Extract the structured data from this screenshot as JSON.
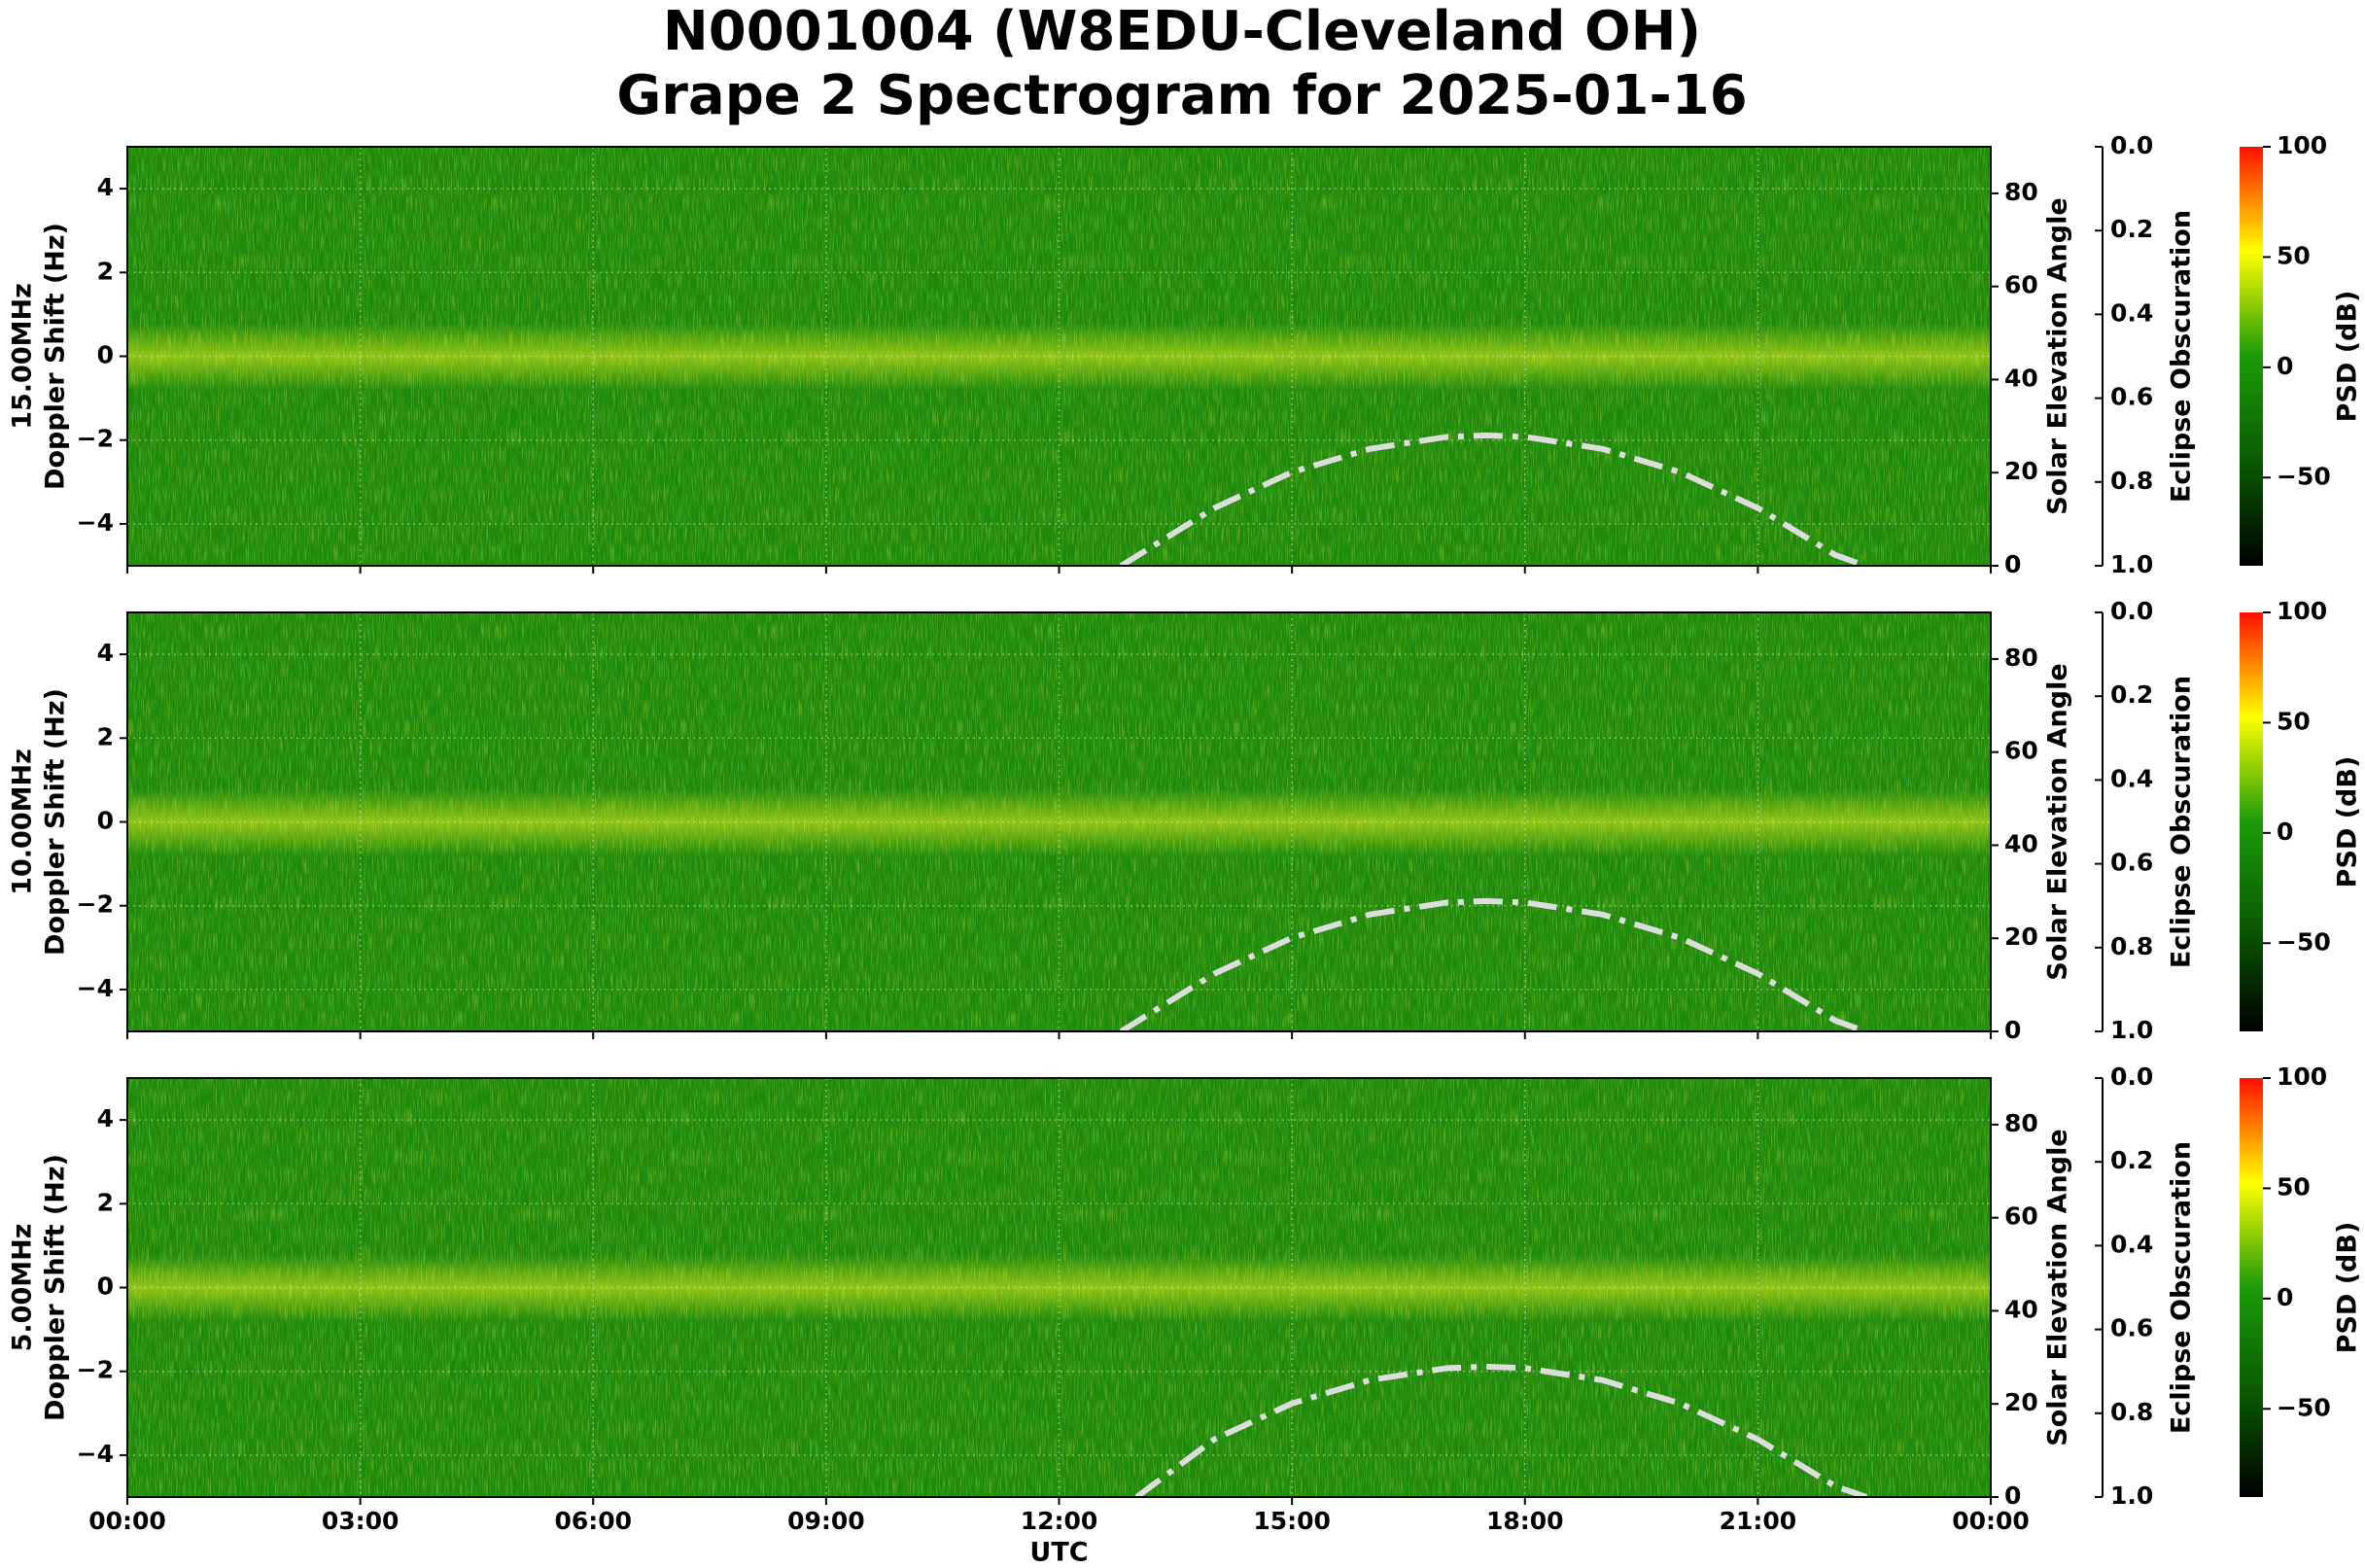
{
  "title": [
    "N0001004 (W8EDU-Cleveland OH)",
    "Grape 2 Spectrogram for 2025-01-16"
  ],
  "chart_data": [
    {
      "type": "spectrogram",
      "ylabel": [
        "15.00MHz",
        "Doppler Shift (Hz)"
      ],
      "ylim": [
        -5,
        5
      ],
      "yticks": [
        {
          "value": -4,
          "label": "−4"
        },
        {
          "value": -2,
          "label": "−2"
        },
        0,
        2,
        4
      ],
      "xlim": [
        0,
        24
      ],
      "xticks": [
        0,
        3,
        6,
        9,
        12,
        15,
        18,
        21,
        24
      ],
      "grid": true,
      "y2label": "Solar Elevation Angle",
      "y2lim": [
        0,
        90
      ],
      "y2ticks": [
        0,
        20,
        40,
        60,
        80
      ],
      "obscuration_label": "Eclipse Obscuration",
      "obscuration_lim": [
        1,
        0
      ],
      "obscuration_ticks": [
        {
          "value": 0,
          "label": "0.0"
        },
        {
          "value": 0.2,
          "label": "0.2"
        },
        {
          "value": 0.4,
          "label": "0.4"
        },
        {
          "value": 0.6,
          "label": "0.6"
        },
        {
          "value": 0.8,
          "label": "0.8"
        },
        {
          "value": 1,
          "label": "1.0"
        }
      ],
      "colorbar_label": "PSD (dB)",
      "clim": [
        -90,
        100
      ],
      "cticks": [
        {
          "value": -50,
          "label": "−50"
        },
        0,
        50,
        100
      ],
      "colormap": [
        "#000000",
        "#0a5a00",
        "#1c9a0a",
        "#ffff00",
        "#ff1000"
      ],
      "x": [
        12.8,
        14,
        15,
        16,
        17,
        17.5,
        18,
        19,
        20,
        21,
        22,
        22.3
      ],
      "series": [
        {
          "axis": "y2",
          "color": "#dddddd",
          "values": [
            0,
            12.4,
            20.1,
            25.1,
            27.7,
            28,
            27.7,
            25.1,
            20.1,
            12.4,
            2.3,
            0.5
          ]
        }
      ]
    },
    {
      "type": "spectrogram",
      "ylabel": [
        "10.00MHz",
        "Doppler Shift (Hz)"
      ],
      "ylim": [
        -5,
        5
      ],
      "yticks": [
        {
          "value": -4,
          "label": "−4"
        },
        {
          "value": -2,
          "label": "−2"
        },
        0,
        2,
        4
      ],
      "xlim": [
        0,
        24
      ],
      "xticks": [
        0,
        3,
        6,
        9,
        12,
        15,
        18,
        21,
        24
      ],
      "grid": true,
      "y2label": "Solar Elevation Angle",
      "y2lim": [
        0,
        90
      ],
      "y2ticks": [
        0,
        20,
        40,
        60,
        80
      ],
      "obscuration_label": "Eclipse Obscuration",
      "obscuration_lim": [
        1,
        0
      ],
      "obscuration_ticks": [
        {
          "value": 0,
          "label": "0.0"
        },
        {
          "value": 0.2,
          "label": "0.2"
        },
        {
          "value": 0.4,
          "label": "0.4"
        },
        {
          "value": 0.6,
          "label": "0.6"
        },
        {
          "value": 0.8,
          "label": "0.8"
        },
        {
          "value": 1,
          "label": "1.0"
        }
      ],
      "colorbar_label": "PSD (dB)",
      "clim": [
        -90,
        100
      ],
      "cticks": [
        {
          "value": -50,
          "label": "−50"
        },
        0,
        50,
        100
      ],
      "colormap": [
        "#000000",
        "#0a5a00",
        "#1c9a0a",
        "#ffff00",
        "#ff1000"
      ],
      "x": [
        12.8,
        14,
        15,
        16,
        17,
        17.5,
        18,
        19,
        20,
        21,
        22,
        22.3
      ],
      "series": [
        {
          "axis": "y2",
          "color": "#dddddd",
          "values": [
            0,
            12.4,
            20.1,
            25.1,
            27.7,
            28,
            27.7,
            25.1,
            20.1,
            12.4,
            2.3,
            0.5
          ]
        }
      ]
    },
    {
      "type": "spectrogram",
      "ylabel": [
        "5.00MHz",
        "Doppler Shift (Hz)"
      ],
      "ylim": [
        -5,
        5
      ],
      "yticks": [
        {
          "value": -4,
          "label": "−4"
        },
        {
          "value": -2,
          "label": "−2"
        },
        0,
        2,
        4
      ],
      "xlim": [
        0,
        24
      ],
      "xlabel": "UTC",
      "grid": true,
      "xticks": [
        {
          "value": 0,
          "label": "00:00"
        },
        {
          "value": 3,
          "label": "03:00"
        },
        {
          "value": 6,
          "label": "06:00"
        },
        {
          "value": 9,
          "label": "09:00"
        },
        {
          "value": 12,
          "label": "12:00"
        },
        {
          "value": 15,
          "label": "15:00"
        },
        {
          "value": 18,
          "label": "18:00"
        },
        {
          "value": 21,
          "label": "21:00"
        },
        {
          "value": 24,
          "label": "00:00"
        }
      ],
      "y2label": "Solar Elevation Angle",
      "y2lim": [
        0,
        90
      ],
      "y2ticks": [
        0,
        20,
        40,
        60,
        80
      ],
      "obscuration_label": "Eclipse Obscuration",
      "obscuration_lim": [
        1,
        0
      ],
      "obscuration_ticks": [
        {
          "value": 0,
          "label": "0.0"
        },
        {
          "value": 0.2,
          "label": "0.2"
        },
        {
          "value": 0.4,
          "label": "0.4"
        },
        {
          "value": 0.6,
          "label": "0.6"
        },
        {
          "value": 0.8,
          "label": "0.8"
        },
        {
          "value": 1,
          "label": "1.0"
        }
      ],
      "colorbar_label": "PSD (dB)",
      "clim": [
        -90,
        100
      ],
      "cticks": [
        {
          "value": -50,
          "label": "−50"
        },
        0,
        50,
        100
      ],
      "colormap": [
        "#000000",
        "#0a5a00",
        "#1c9a0a",
        "#ffff00",
        "#ff1000"
      ],
      "x": [
        13.0,
        14,
        15,
        16,
        17,
        17.5,
        18,
        19,
        20,
        21,
        22,
        22.4
      ],
      "series": [
        {
          "axis": "y2",
          "color": "#dddddd",
          "values": [
            0,
            12.4,
            20.1,
            25.1,
            27.7,
            28,
            27.7,
            25.1,
            20.1,
            12.4,
            2.3,
            0
          ]
        }
      ]
    }
  ]
}
